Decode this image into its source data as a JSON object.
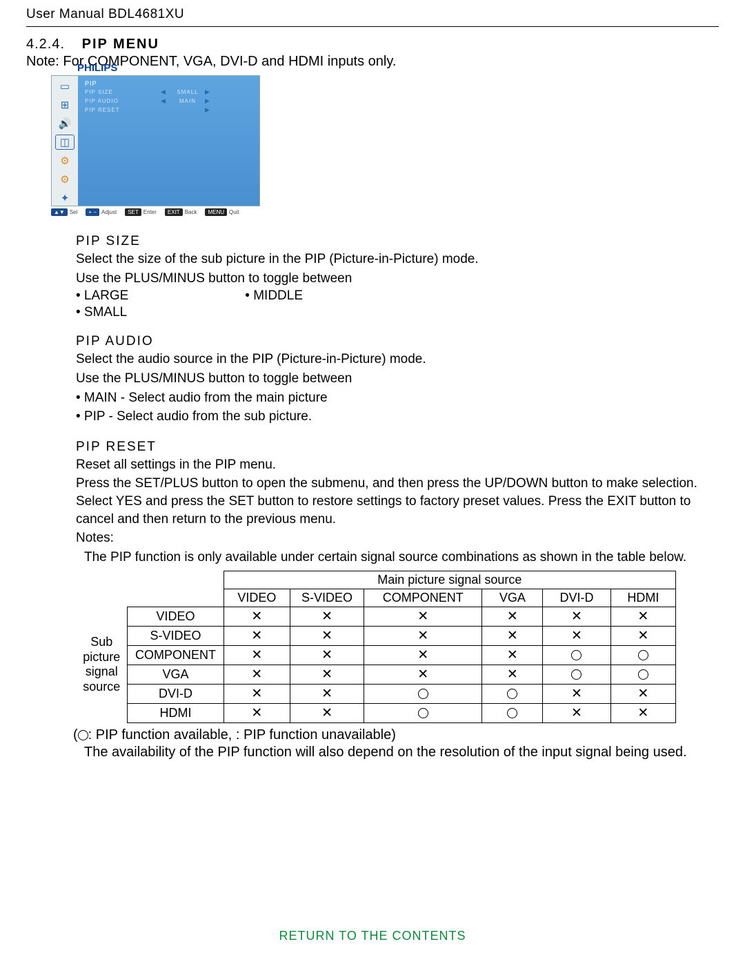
{
  "header": {
    "title": "User Manual BDL4681XU"
  },
  "section": {
    "num": "4.2.4.",
    "title": "PIP MENU",
    "note": "Note: For COMPONENT, VGA, DVI-D and HDMI inputs only."
  },
  "osd": {
    "brand": "PHILIPS",
    "title": "PIP",
    "items": [
      {
        "label": "PIP SIZE",
        "left": "◀",
        "value": "SMALL",
        "right": "▶"
      },
      {
        "label": "PIP AUDIO",
        "left": "◀",
        "value": "MAIN",
        "right": "▶"
      },
      {
        "label": "PIP RESET",
        "left": "",
        "value": "",
        "right": "▶"
      }
    ],
    "legend": [
      {
        "key": "▲▼",
        "txt": "Sel"
      },
      {
        "key": "+ −",
        "txt": "Adjust"
      },
      {
        "key": "SET",
        "txt": "Enter"
      },
      {
        "key": "EXIT",
        "txt": "Back"
      },
      {
        "key": "MENU",
        "txt": "Quit"
      }
    ]
  },
  "pipsize": {
    "title": "PIP SIZE",
    "p1": "Select the size of the sub picture in the PIP (Picture-in-Picture) mode.",
    "p2": "Use the PLUS/MINUS button to toggle between",
    "b1": "• LARGE",
    "b2": "• MIDDLE",
    "b3": "• SMALL"
  },
  "pipaudio": {
    "title": "PIP AUDIO",
    "p1": "Select the audio source in the PIP (Picture-in-Picture) mode.",
    "p2": "Use the PLUS/MINUS button to toggle between",
    "b1": "• MAIN - Select audio from the main picture",
    "b2": "• PIP - Select audio from the sub picture."
  },
  "pipreset": {
    "title": "PIP RESET",
    "p1": "Reset all settings in the PIP menu.",
    "p2": "Press the SET/PLUS button to open the submenu, and then press the UP/DOWN button to make selection. Select YES and press the SET button to restore settings to factory preset values. Press the EXIT button to cancel and then return to the previous menu.",
    "notesLabel": "Notes:",
    "note1": "The PIP function is only available under certain signal source combinations as shown in the table below."
  },
  "table": {
    "mainHeader": "Main picture signal source",
    "sideHeader": "Sub picture signal source",
    "cols": [
      "VIDEO",
      "S-VIDEO",
      "COMPONENT",
      "VGA",
      "DVI-D",
      "HDMI"
    ],
    "rows": [
      {
        "label": "VIDEO",
        "cells": [
          "X",
          "X",
          "X",
          "X",
          "X",
          "X"
        ]
      },
      {
        "label": "S-VIDEO",
        "cells": [
          "X",
          "X",
          "X",
          "X",
          "X",
          "X"
        ]
      },
      {
        "label": "COMPONENT",
        "cells": [
          "X",
          "X",
          "X",
          "X",
          "O",
          "O"
        ]
      },
      {
        "label": "VGA",
        "cells": [
          "X",
          "X",
          "X",
          "X",
          "O",
          "O"
        ]
      },
      {
        "label": "DVI-D",
        "cells": [
          "X",
          "X",
          "O",
          "O",
          "X",
          "X"
        ]
      },
      {
        "label": "HDMI",
        "cells": [
          "X",
          "X",
          "O",
          "O",
          "X",
          "X"
        ]
      }
    ]
  },
  "legend2": {
    "text": ": PIP function available,     : PIP function unavailable)",
    "open": "(",
    "x": "✕"
  },
  "note3": "The availability of the PIP function will also depend on the resolution of the input signal being used.",
  "footer": {
    "link": "RETURN TO THE CONTENTS"
  }
}
